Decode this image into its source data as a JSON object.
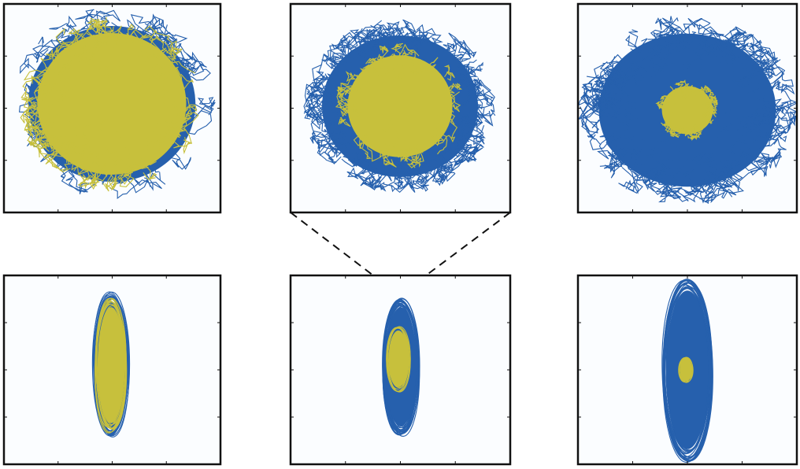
{
  "colors": {
    "outer": "#2660ad",
    "inner": "#c7c03c",
    "frame": "#111111",
    "background": "#fbfdff"
  }
}
